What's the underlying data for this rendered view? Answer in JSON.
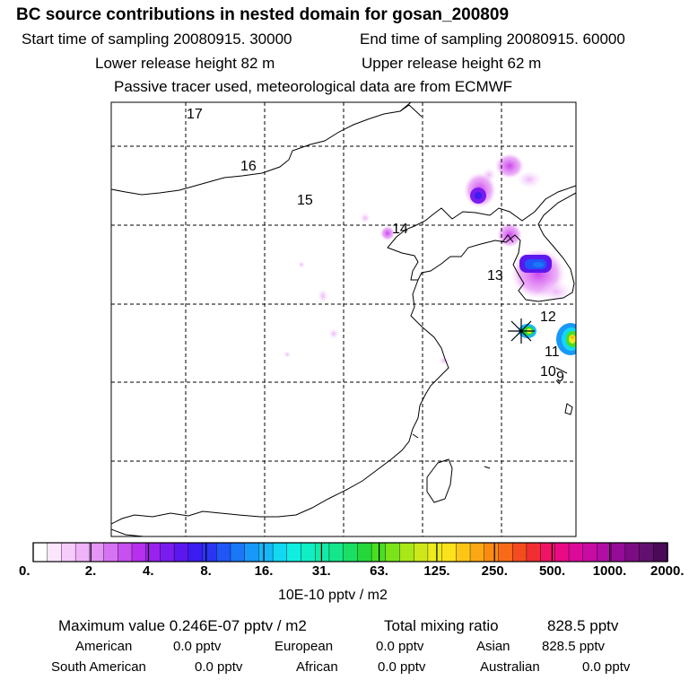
{
  "header": {
    "title": "BC  source contributions in nested domain for gosan_200809",
    "start_label": "Start time of sampling 20080915. 30000",
    "end_label": "End time of sampling 20080915. 60000",
    "lower_label": "Lower release height   82 m",
    "upper_label": "Upper release height   62 m",
    "info": "Passive tracer used, meteorological data are from ECMWF"
  },
  "map": {
    "trajectory_labels": [
      "17",
      "16",
      "15",
      "14",
      "13",
      "12",
      "11",
      "10",
      "9"
    ],
    "receptor_marker": "star-receptor-icon"
  },
  "colorbar": {
    "tick_labels": [
      "0.",
      "2.",
      "4.",
      "8.",
      "16.",
      "31.",
      "63.",
      "125.",
      "250.",
      "500.",
      "1000.",
      "2000."
    ],
    "units": "10E-10 pptv / m2",
    "colors": [
      "#ffffff",
      "#fbe6fd",
      "#f6ccfb",
      "#f0b2f9",
      "#e496f6",
      "#d673f3",
      "#c650f0",
      "#b630ee",
      "#9a22ee",
      "#7a1cef",
      "#5a18ef",
      "#3b1cf1",
      "#2a34f3",
      "#1f56f5",
      "#1a78f7",
      "#1898f8",
      "#16b8f8",
      "#12d8f2",
      "#10eee0",
      "#10eec4",
      "#12eaa6",
      "#14e68a",
      "#1adf62",
      "#24d83c",
      "#4ade22",
      "#7ae418",
      "#a6e818",
      "#cce81a",
      "#eceb1c",
      "#fce21a",
      "#fdc616",
      "#fca814",
      "#fb8a14",
      "#f86a18",
      "#f44c1e",
      "#f02e34",
      "#f01466",
      "#ea0a86",
      "#dc0a9a",
      "#c80ca2",
      "#b00ea4",
      "#960c98",
      "#7c0c84",
      "#621070",
      "#4a0a58"
    ]
  },
  "footer": {
    "max_label": "Maximum value  0.246E-07 pptv / m2",
    "total_label": "Total mixing ratio",
    "total_value": "828.5 pptv",
    "regions": [
      {
        "name": "American",
        "value": "0.0 pptv"
      },
      {
        "name": "European",
        "value": "0.0 pptv"
      },
      {
        "name": "Asian",
        "value": "828.5 pptv"
      },
      {
        "name": "South American",
        "value": "0.0 pptv"
      },
      {
        "name": "African",
        "value": "0.0 pptv"
      },
      {
        "name": "Australian",
        "value": "0.0 pptv"
      }
    ]
  }
}
